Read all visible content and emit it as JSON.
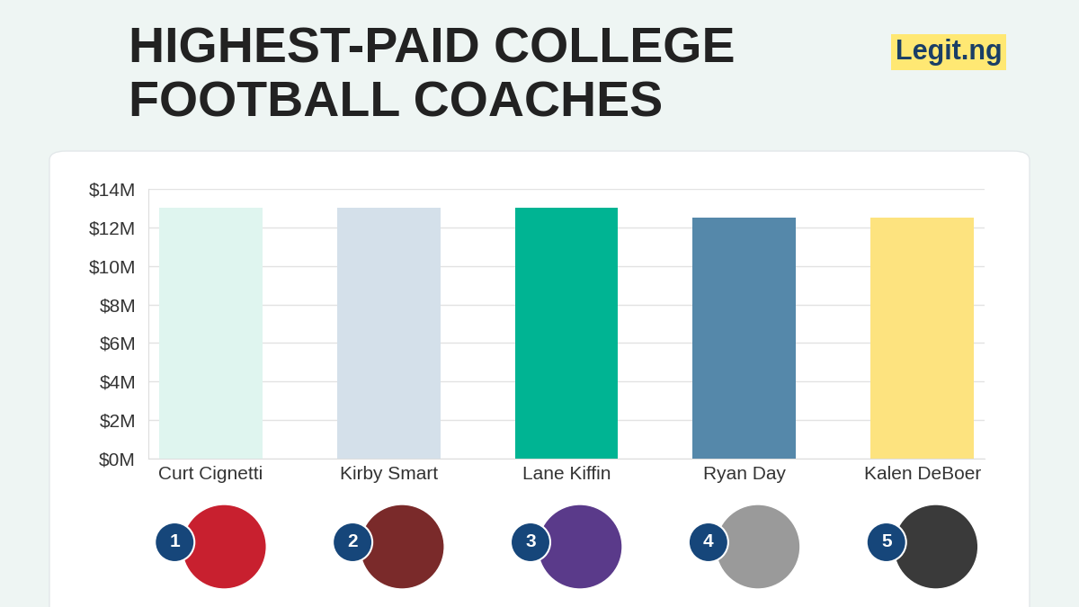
{
  "chart_data": {
    "type": "bar",
    "title": "HIGHEST-PAID COLLEGE FOOTBALL COACHES",
    "annotations": [
      "Legit.ng"
    ],
    "categories": [
      "Curt Cignetti",
      "Kirby Smart",
      "Lane Kiffin",
      "Ryan Day",
      "Kalen DeBoer"
    ],
    "values": [
      13,
      13,
      13,
      12.5,
      12.5
    ],
    "ranks": [
      1,
      2,
      3,
      4,
      5
    ],
    "colors": [
      "#dff5ef",
      "#d4e0ea",
      "#00b493",
      "#5588aa",
      "#fde37f"
    ],
    "ylim": [
      0,
      14
    ],
    "yticks": [
      {
        "value": 0,
        "label": "$0M"
      },
      {
        "value": 2,
        "label": "$2M"
      },
      {
        "value": 4,
        "label": "$4M"
      },
      {
        "value": 6,
        "label": "$6M"
      },
      {
        "value": 8,
        "label": "$8M"
      },
      {
        "value": 10,
        "label": "$10M"
      },
      {
        "value": 12,
        "label": "$12M"
      },
      {
        "value": 14,
        "label": "$14M"
      }
    ],
    "grid": true
  }
}
